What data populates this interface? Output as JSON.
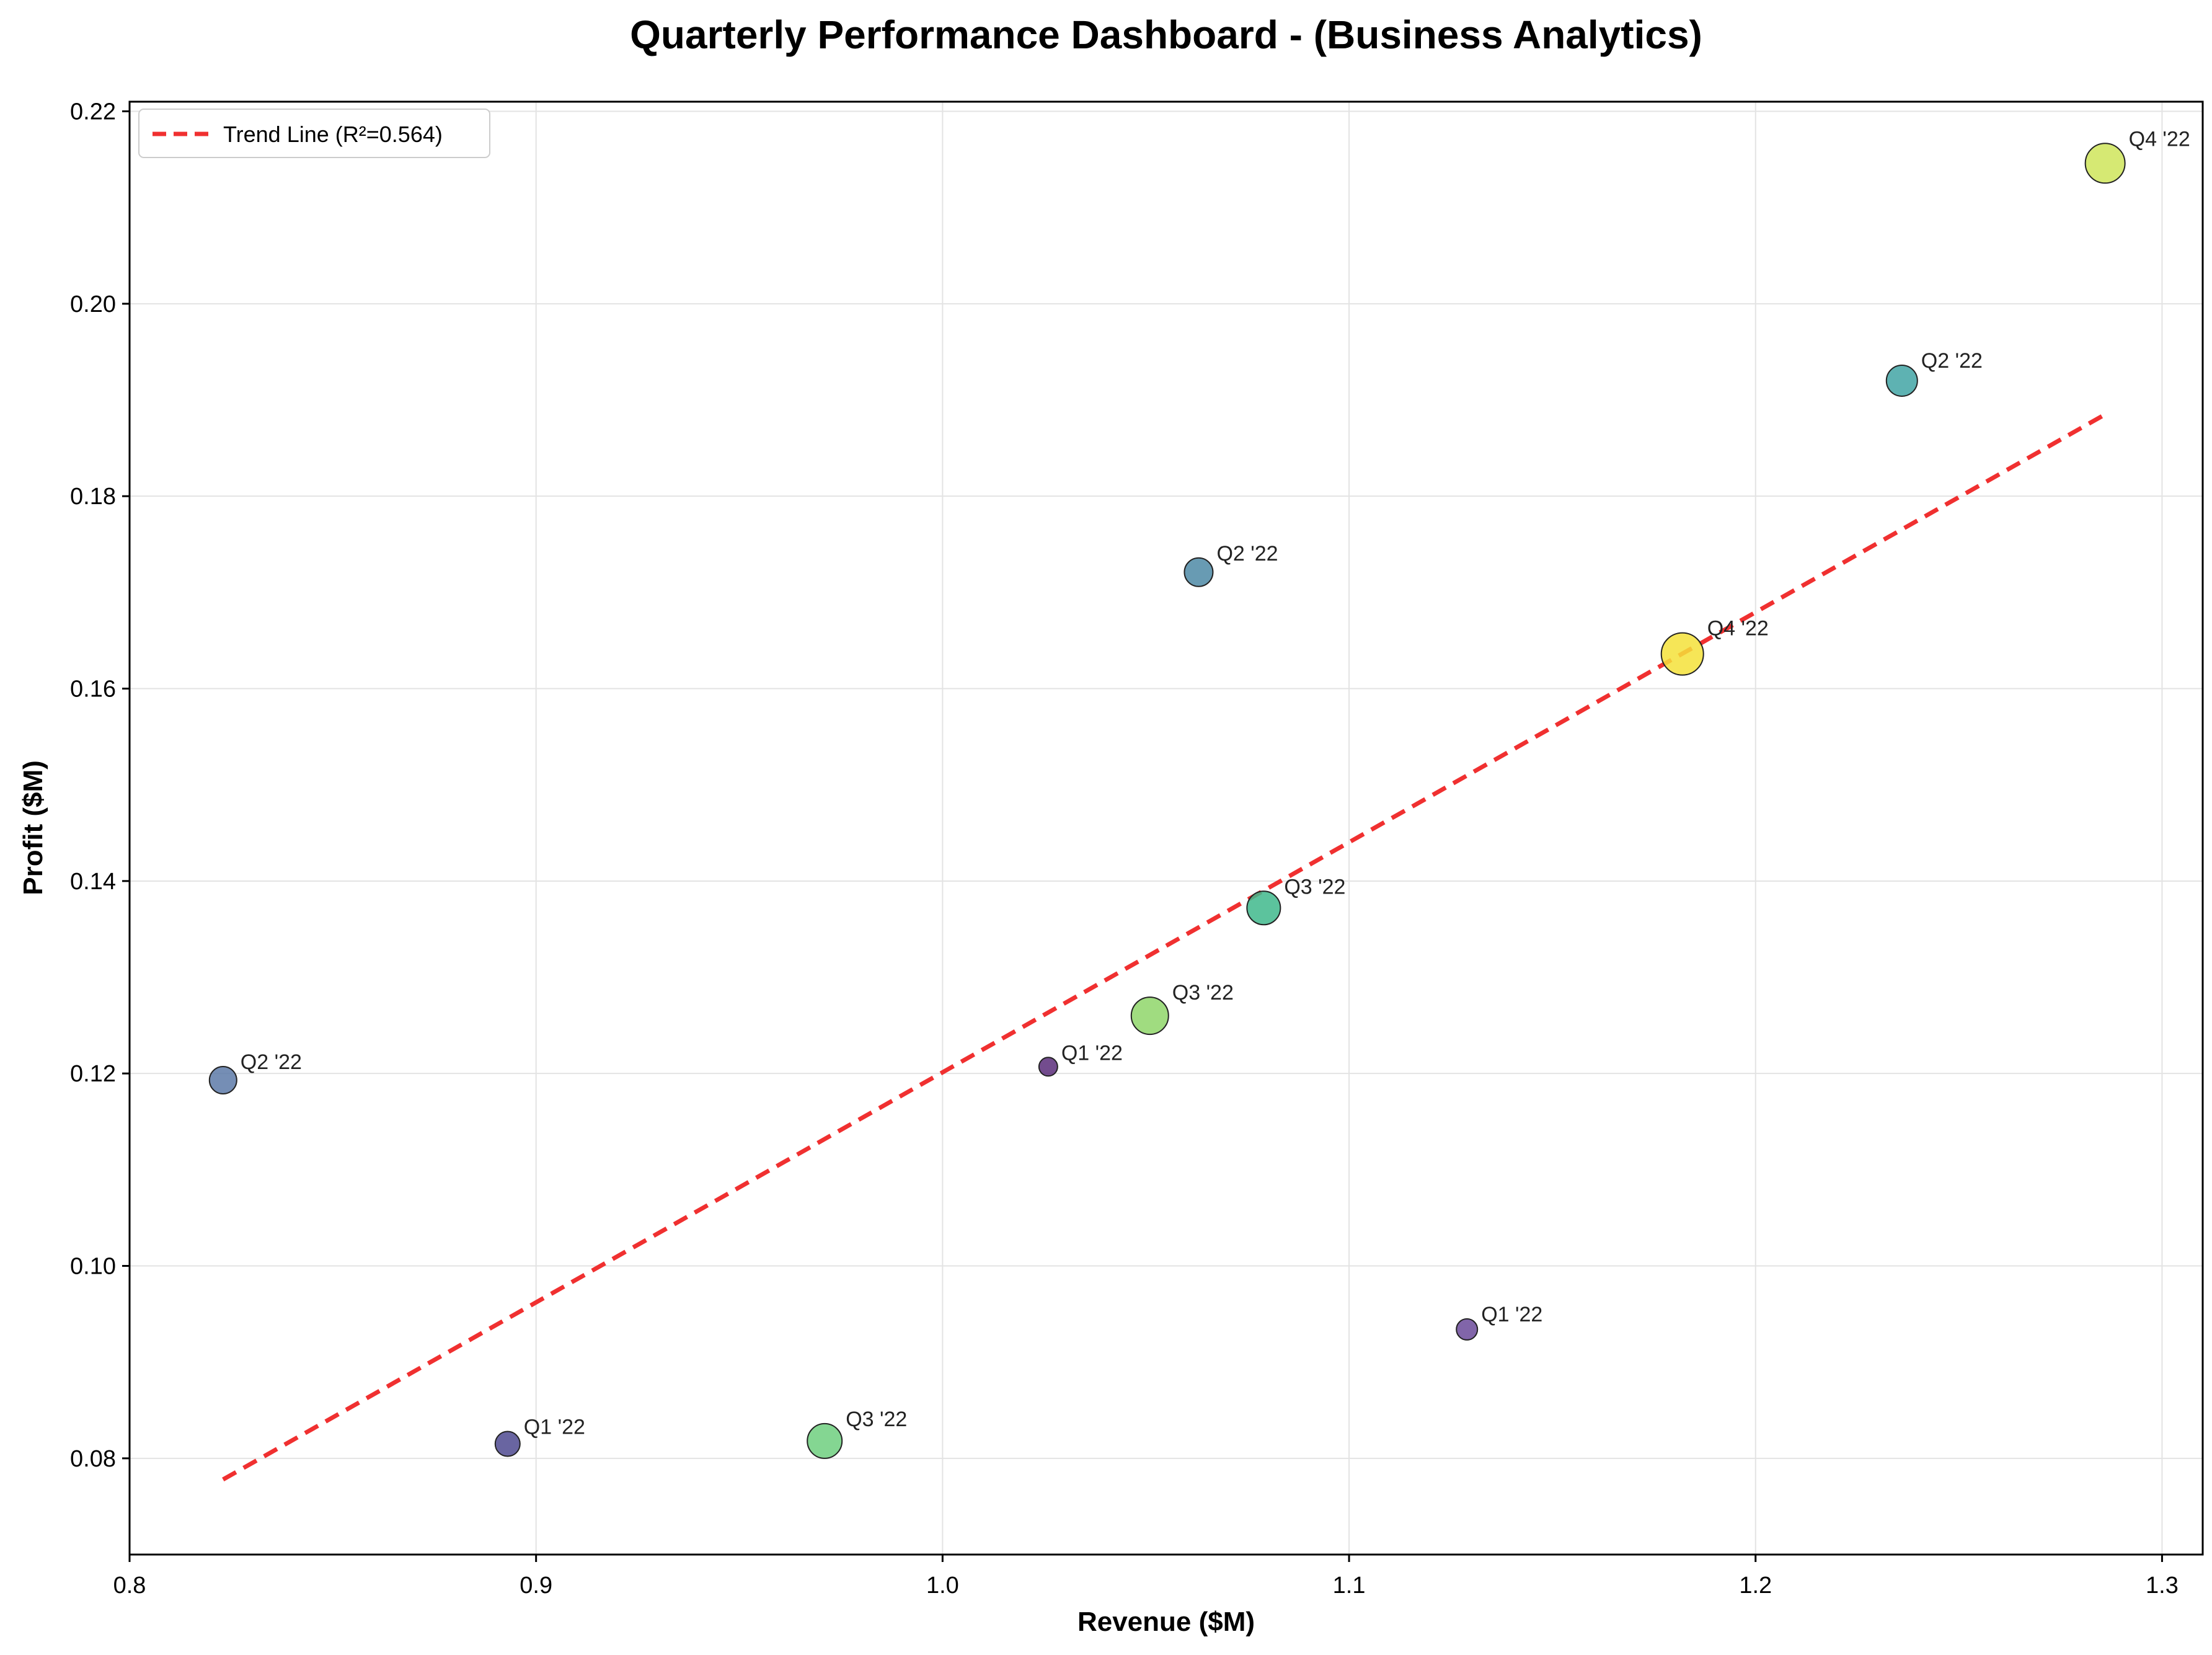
{
  "chart_data": {
    "type": "scatter",
    "title": "Quarterly Performance Dashboard - (Business Analytics)",
    "xlabel": "Revenue ($M)",
    "ylabel": "Profit ($M)",
    "xlim": [
      0.8,
      1.31
    ],
    "ylim": [
      0.07,
      0.221
    ],
    "xticks": [
      0.8,
      0.9,
      1.0,
      1.1,
      1.2,
      1.3
    ],
    "yticks": [
      0.08,
      0.1,
      0.12,
      0.14,
      0.16,
      0.18,
      0.2,
      0.22
    ],
    "xtick_labels": [
      "0.8",
      "0.9",
      "1.0",
      "1.1",
      "1.2",
      "1.3"
    ],
    "ytick_labels": [
      "0.08",
      "0.10",
      "0.12",
      "0.14",
      "0.16",
      "0.18",
      "0.20",
      "0.22"
    ],
    "grid": true,
    "legend_position": "top-left",
    "trend_line": {
      "label": "Trend Line (R²=0.564)",
      "color": "#f03030",
      "x": [
        0.823,
        1.286
      ],
      "y": [
        0.0778,
        0.1885
      ]
    },
    "points": [
      {
        "label": "Q1 '22",
        "x": 0.893,
        "y": 0.0815,
        "size": 20,
        "color": "#4f4a91"
      },
      {
        "label": "Q3 '22",
        "x": 0.971,
        "y": 0.0818,
        "size": 28,
        "color": "#6fcf7f"
      },
      {
        "label": "Q2 '22",
        "x": 0.823,
        "y": 0.1193,
        "size": 22,
        "color": "#5d7aa8"
      },
      {
        "label": "Q1 '22",
        "x": 1.026,
        "y": 0.1207,
        "size": 15,
        "color": "#5a2d7a"
      },
      {
        "label": "Q3 '22",
        "x": 1.051,
        "y": 0.126,
        "size": 30,
        "color": "#8fd66a"
      },
      {
        "label": "Q3 '22",
        "x": 1.079,
        "y": 0.1372,
        "size": 27,
        "color": "#3fb98c"
      },
      {
        "label": "Q2 '22",
        "x": 1.063,
        "y": 0.1721,
        "size": 23,
        "color": "#4d8aa6"
      },
      {
        "label": "Q1 '22",
        "x": 1.129,
        "y": 0.0934,
        "size": 17,
        "color": "#6b4a9a"
      },
      {
        "label": "Q4 '22",
        "x": 1.182,
        "y": 0.1636,
        "size": 34,
        "color": "#f5e23a"
      },
      {
        "label": "Q2 '22",
        "x": 1.236,
        "y": 0.192,
        "size": 25,
        "color": "#42a4a4"
      },
      {
        "label": "Q4 '22",
        "x": 1.286,
        "y": 0.2146,
        "size": 32,
        "color": "#cfe55a"
      }
    ]
  }
}
